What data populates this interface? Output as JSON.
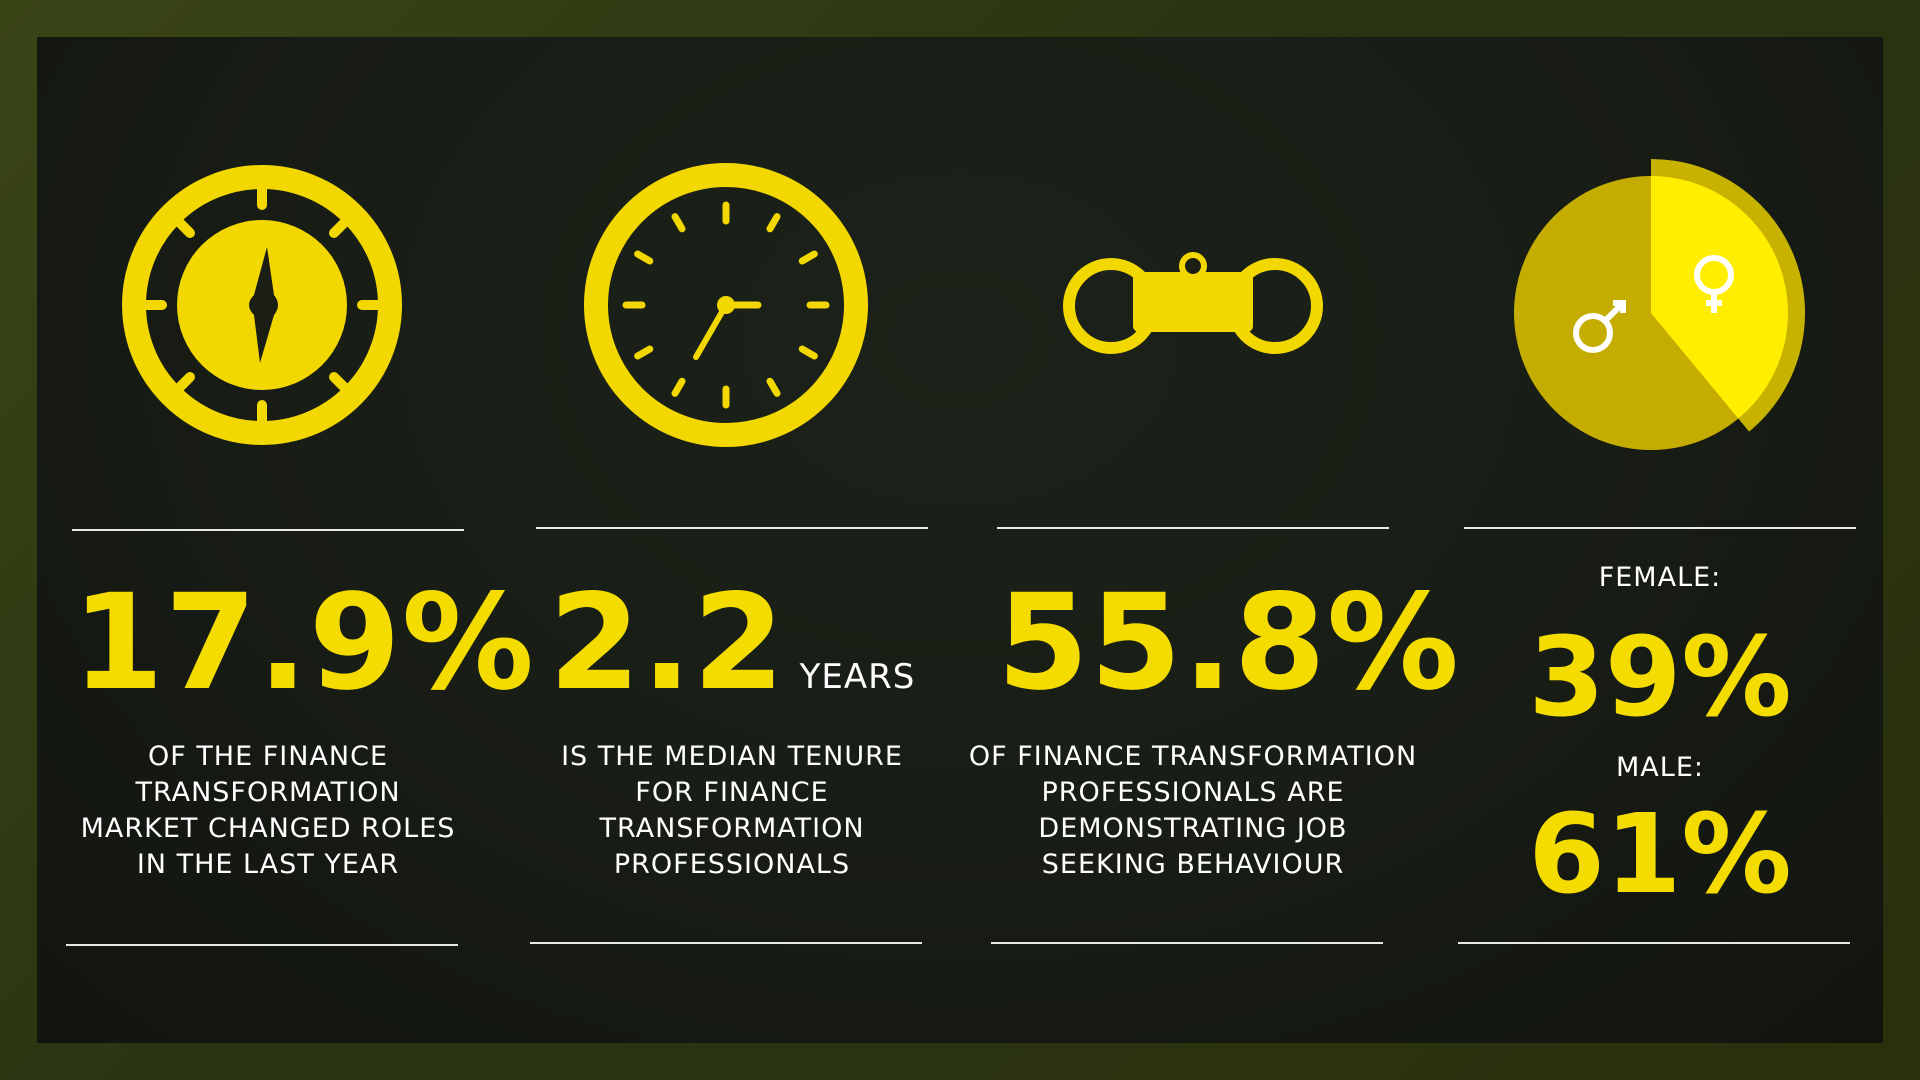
{
  "colors": {
    "accent": "#f5dc00",
    "pie_female": "#ffee00",
    "pie_male": "#c8b000",
    "text": "#ffffff"
  },
  "stats": [
    {
      "icon": "compass-icon",
      "value": "17.9%",
      "unit": "",
      "lines": [
        "OF THE FINANCE",
        "TRANSFORMATION",
        "MARKET CHANGED ROLES",
        "IN THE LAST YEAR"
      ]
    },
    {
      "icon": "clock-icon",
      "value": "2.2",
      "unit": "YEARS",
      "lines": [
        "IS THE MEDIAN TENURE",
        "FOR FINANCE",
        "TRANSFORMATION",
        "PROFESSIONALS"
      ]
    },
    {
      "icon": "binoculars-icon",
      "value": "55.8%",
      "unit": "",
      "lines": [
        "OF FINANCE TRANSFORMATION",
        "PROFESSIONALS ARE",
        "DEMONSTRATING JOB",
        "SEEKING BEHAVIOUR"
      ]
    }
  ],
  "gender": {
    "icon": "gender-pie-icon",
    "female_label": "FEMALE:",
    "female_value": "39%",
    "male_label": "MALE:",
    "male_value": "61%",
    "female_fraction": 0.39
  }
}
